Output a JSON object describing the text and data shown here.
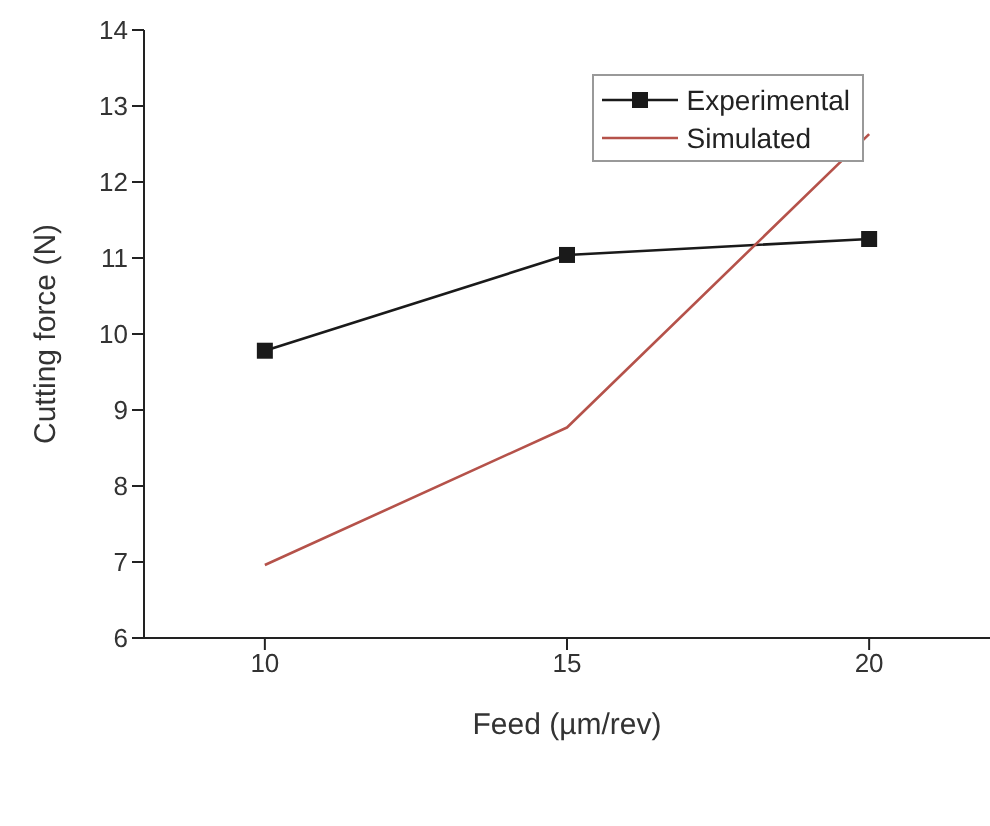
{
  "chart_data": {
    "type": "line",
    "xlabel": "Feed (µm/rev)",
    "ylabel": "Cutting force (N)",
    "x": [
      10,
      15,
      20
    ],
    "series": [
      {
        "name": "Experimental",
        "color": "#1a1a1a",
        "values": [
          9.78,
          11.04,
          11.25
        ],
        "marker": "square"
      },
      {
        "name": "Simulated",
        "color": "#b5524a",
        "values": [
          6.96,
          8.77,
          12.63
        ],
        "marker": "none"
      }
    ],
    "xlim": [
      8,
      22
    ],
    "xticks": [
      10,
      15,
      20
    ],
    "ylim": [
      6,
      14
    ],
    "yticks": [
      6,
      7,
      8,
      9,
      10,
      11,
      12,
      13,
      14
    ],
    "grid": false,
    "legend": "top right",
    "line_style": "solid"
  }
}
